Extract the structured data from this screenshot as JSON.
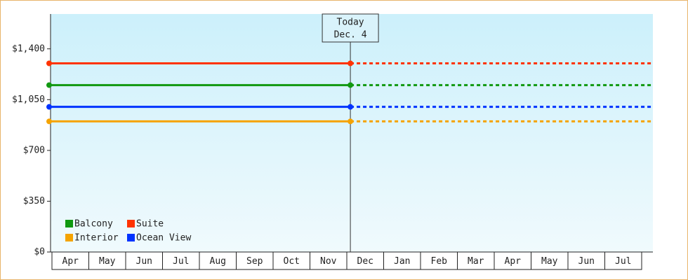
{
  "chart_data": {
    "type": "line",
    "categories": [
      "Apr",
      "May",
      "Jun",
      "Jul",
      "Aug",
      "Sep",
      "Oct",
      "Nov",
      "Dec",
      "Jan",
      "Feb",
      "Mar",
      "Apr",
      "May",
      "Jun",
      "Jul"
    ],
    "series": [
      {
        "name": "Balcony",
        "color": "#119911",
        "value": 1150
      },
      {
        "name": "Suite",
        "color": "#ff3300",
        "value": 1300
      },
      {
        "name": "Interior",
        "color": "#f5a300",
        "value": 900
      },
      {
        "name": "Ocean View",
        "color": "#0033ff",
        "value": 1000
      }
    ],
    "ylim": [
      0,
      1640
    ],
    "yticks": [
      {
        "value": 0,
        "label": "$0"
      },
      {
        "value": 350,
        "label": "$350"
      },
      {
        "value": 700,
        "label": "$700"
      },
      {
        "value": 1050,
        "label": "$1,050"
      },
      {
        "value": 1400,
        "label": "$1,400"
      }
    ],
    "annotation": [
      "Today",
      "Dec. 4"
    ]
  }
}
